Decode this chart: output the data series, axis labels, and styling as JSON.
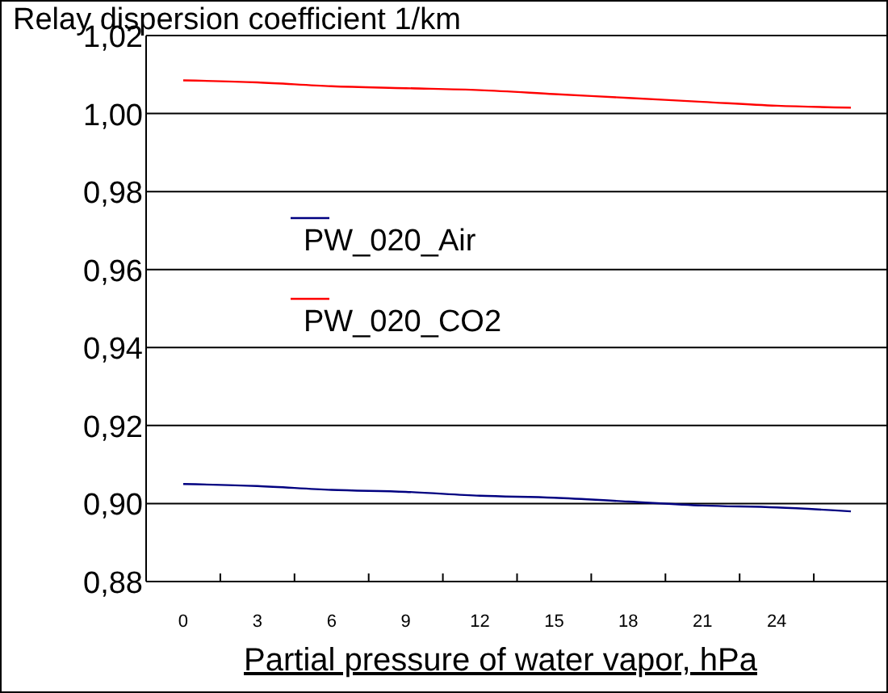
{
  "chart_data": {
    "type": "line",
    "ylabel": "Relay dispersion coefficient 1/km",
    "xlabel": "Partial pressure of water vapor, hPa",
    "x": [
      0,
      3,
      6,
      9,
      12,
      15,
      18,
      21,
      24,
      27
    ],
    "series": [
      {
        "name": "PW_020_Air",
        "color": "#000080",
        "values": [
          0.905,
          0.9045,
          0.9035,
          0.903,
          0.902,
          0.9015,
          0.9005,
          0.8995,
          0.899,
          0.898
        ]
      },
      {
        "name": "PW_020_CO2",
        "color": "#ff0000",
        "values": [
          1.0085,
          1.008,
          1.007,
          1.0065,
          1.006,
          1.005,
          1.004,
          1.003,
          1.002,
          1.0015
        ]
      }
    ],
    "xlim": [
      -1.5,
      28.5
    ],
    "xticks": [
      0,
      {
        "value": 1.5,
        "label": null
      },
      3,
      {
        "value": 4.5,
        "label": null
      },
      6,
      {
        "value": 7.5,
        "label": null
      },
      9,
      {
        "value": 10.5,
        "label": null
      },
      12,
      {
        "value": 13.5,
        "label": null
      },
      15,
      {
        "value": 16.5,
        "label": null
      },
      18,
      {
        "value": 19.5,
        "label": null
      },
      21,
      {
        "value": 22.5,
        "label": null
      },
      24,
      {
        "value": 25.5,
        "label": null
      }
    ],
    "ylim": [
      0.88,
      1.02
    ],
    "yticks": [
      {
        "value": 0.88,
        "label": "0,88"
      },
      {
        "value": 0.9,
        "label": "0,90"
      },
      {
        "value": 0.92,
        "label": "0,92"
      },
      {
        "value": 0.94,
        "label": "0,94"
      },
      {
        "value": 0.96,
        "label": "0,96"
      },
      {
        "value": 0.98,
        "label": "0,98"
      },
      {
        "value": 1.0,
        "label": "1,00"
      },
      {
        "value": 1.02,
        "label": "1,02"
      }
    ],
    "grid": "y",
    "legend": "left",
    "marker": "none",
    "line_style": "solid"
  }
}
